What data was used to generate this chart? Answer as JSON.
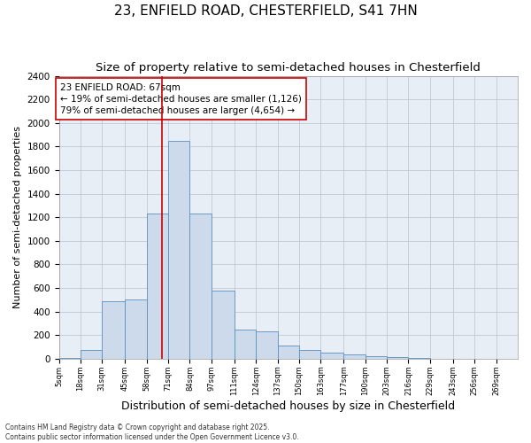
{
  "title1": "23, ENFIELD ROAD, CHESTERFIELD, S41 7HN",
  "title2": "Size of property relative to semi-detached houses in Chesterfield",
  "xlabel": "Distribution of semi-detached houses by size in Chesterfield",
  "ylabel": "Number of semi-detached properties",
  "footnote": "Contains HM Land Registry data © Crown copyright and database right 2025.\nContains public sector information licensed under the Open Government Licence v3.0.",
  "annotation_title": "23 ENFIELD ROAD: 67sqm",
  "annotation_line1": "← 19% of semi-detached houses are smaller (1,126)",
  "annotation_line2": "79% of semi-detached houses are larger (4,654) →",
  "property_size": 67,
  "bin_labels": [
    "5sqm",
    "18sqm",
    "31sqm",
    "45sqm",
    "58sqm",
    "71sqm",
    "84sqm",
    "97sqm",
    "111sqm",
    "124sqm",
    "137sqm",
    "150sqm",
    "163sqm",
    "177sqm",
    "190sqm",
    "203sqm",
    "216sqm",
    "229sqm",
    "243sqm",
    "256sqm",
    "269sqm"
  ],
  "bin_edges": [
    5,
    18,
    31,
    45,
    58,
    71,
    84,
    97,
    111,
    124,
    137,
    150,
    163,
    177,
    190,
    203,
    216,
    229,
    243,
    256,
    269,
    282
  ],
  "bar_values": [
    10,
    75,
    490,
    500,
    1230,
    1850,
    1230,
    575,
    245,
    230,
    110,
    75,
    55,
    35,
    20,
    15,
    5,
    3,
    1,
    0,
    0
  ],
  "bar_color": "#ccdaeb",
  "bar_edge_color": "#5a8fc0",
  "vline_color": "#cc0000",
  "vline_x": 67,
  "annotation_box_color": "#cc0000",
  "ylim": [
    0,
    2400
  ],
  "yticks": [
    0,
    200,
    400,
    600,
    800,
    1000,
    1200,
    1400,
    1600,
    1800,
    2000,
    2200,
    2400
  ],
  "grid_color": "#c0c8d8",
  "bg_color": "#e8eef6",
  "title1_fontsize": 11,
  "title2_fontsize": 9.5,
  "xlabel_fontsize": 9,
  "ylabel_fontsize": 8,
  "tick_fontsize": 7.5,
  "xtick_fontsize": 6,
  "annotation_fontsize": 7.5,
  "footnote_fontsize": 5.5
}
